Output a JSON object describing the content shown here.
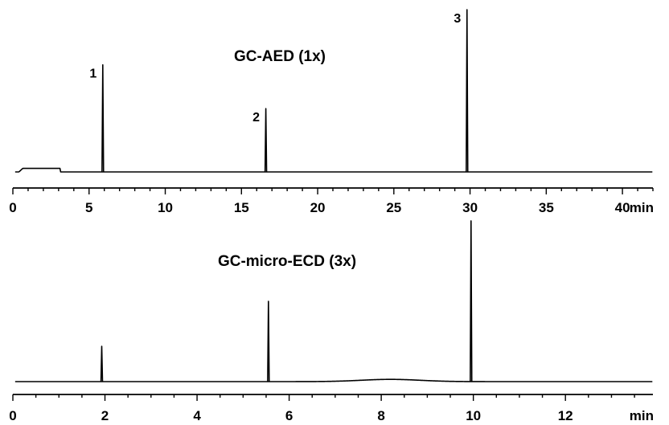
{
  "chart_data": [
    {
      "type": "line",
      "title": "GC-AED (1x)",
      "xlabel": "",
      "ylabel": "",
      "x_unit": "min",
      "xlim": [
        0,
        42
      ],
      "ylim": [
        0,
        100
      ],
      "x_ticks": [
        0,
        5,
        10,
        15,
        20,
        25,
        30,
        35,
        40
      ],
      "x_tick_labels": [
        "0",
        "5",
        "10",
        "15",
        "20",
        "25",
        "30",
        "35",
        "40"
      ],
      "minor_tick_step": 1,
      "grid": false,
      "baseline": 0,
      "plateau": {
        "x_start": 0.4,
        "x_end": 3.1,
        "height": 2.2
      },
      "peaks": [
        {
          "label": "1",
          "x": 5.9,
          "height": 66
        },
        {
          "label": "2",
          "x": 16.6,
          "height": 39
        },
        {
          "label": "3",
          "x": 29.8,
          "height": 100
        }
      ]
    },
    {
      "type": "line",
      "title": "GC-micro-ECD (3x)",
      "xlabel": "",
      "ylabel": "",
      "x_unit": "min",
      "xlim": [
        0,
        13.9
      ],
      "ylim": [
        0,
        100
      ],
      "x_ticks": [
        0,
        2,
        4,
        6,
        8,
        10,
        12
      ],
      "x_tick_labels": [
        "0",
        "2",
        "4",
        "6",
        "8",
        "10",
        "12"
      ],
      "minor_tick_step": 0.5,
      "grid": false,
      "baseline": 0,
      "hump": {
        "center": 8.2,
        "height": 1.4,
        "width": 0.9
      },
      "peaks": [
        {
          "label": "",
          "x": 1.93,
          "height": 22
        },
        {
          "label": "",
          "x": 5.55,
          "height": 50
        },
        {
          "label": "",
          "x": 9.95,
          "height": 100
        }
      ]
    }
  ]
}
